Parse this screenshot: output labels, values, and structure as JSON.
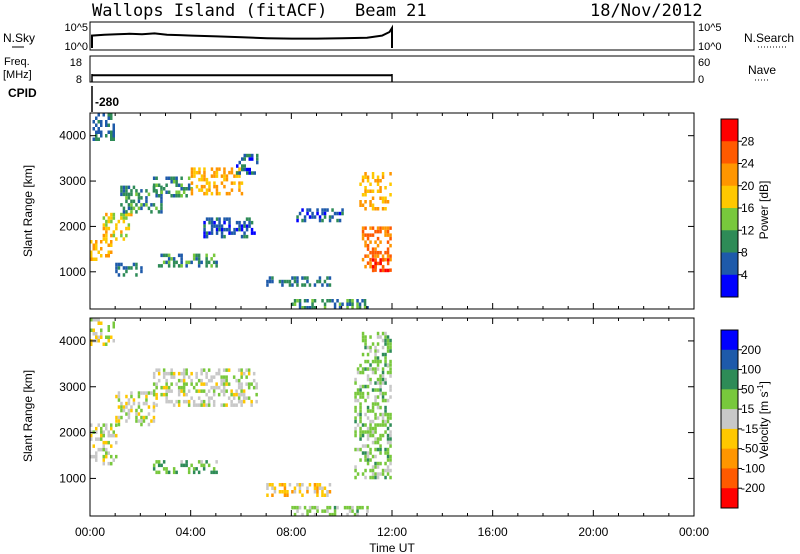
{
  "header": {
    "site": "Wallops Island (fitACF)",
    "beam": "Beam 21",
    "date": "18/Nov/2012"
  },
  "noise_panel": {
    "left_label": "N.Sky",
    "right_label": "N.Search",
    "left_ticks": [
      "10^5",
      "10^0"
    ],
    "right_ticks": [
      "10^5",
      "10^0"
    ],
    "series": [
      {
        "x": 0.0,
        "y": 2.6
      },
      {
        "x": 0.5,
        "y": 2.8
      },
      {
        "x": 1.0,
        "y": 2.9
      },
      {
        "x": 1.5,
        "y": 3.0
      },
      {
        "x": 2.0,
        "y": 2.9
      },
      {
        "x": 2.5,
        "y": 3.1
      },
      {
        "x": 3.0,
        "y": 2.8
      },
      {
        "x": 3.5,
        "y": 2.7
      },
      {
        "x": 4.0,
        "y": 2.6
      },
      {
        "x": 5.0,
        "y": 2.4
      },
      {
        "x": 6.0,
        "y": 2.2
      },
      {
        "x": 7.0,
        "y": 2.0
      },
      {
        "x": 8.0,
        "y": 1.9
      },
      {
        "x": 9.0,
        "y": 1.9
      },
      {
        "x": 10.0,
        "y": 2.0
      },
      {
        "x": 11.0,
        "y": 2.1
      },
      {
        "x": 11.6,
        "y": 2.6
      },
      {
        "x": 11.9,
        "y": 3.4
      }
    ]
  },
  "freq_panel": {
    "left_label_1": "Freq.",
    "left_label_2": "[MHz]",
    "right_label": "Nave",
    "left_ticks": [
      "18",
      "8"
    ],
    "right_ticks": [
      "60",
      "0"
    ],
    "freq_mhz": 10.2,
    "nave": 15
  },
  "cpid": {
    "label": "CPID",
    "value": "-280"
  },
  "chart_data": [
    {
      "type": "heatmap",
      "name": "power",
      "xlabel": "",
      "ylabel": "Slant Range [km]",
      "xlim": [
        0,
        24
      ],
      "ylim": [
        180,
        4500
      ],
      "yticks": [
        "1000",
        "2000",
        "3000",
        "4000"
      ],
      "colorbar": {
        "label": "Power [dB]",
        "ticks": [
          "28",
          "24",
          "20",
          "16",
          "12",
          "8",
          "4"
        ],
        "colors": [
          "#ff0000",
          "#ff5a00",
          "#ff9600",
          "#ffc800",
          "#78c83c",
          "#2e8b57",
          "#1e5aaa",
          "#0000ff"
        ]
      },
      "echo_regions": [
        {
          "x0": 0.1,
          "x1": 0.9,
          "r0": 3900,
          "r1": 4500,
          "value": 8
        },
        {
          "x0": 0.0,
          "x1": 0.8,
          "r0": 1300,
          "r1": 1700,
          "value": 20
        },
        {
          "x0": 0.5,
          "x1": 1.6,
          "r0": 1700,
          "r1": 2300,
          "value": 18
        },
        {
          "x0": 1.2,
          "x1": 2.8,
          "r0": 2300,
          "r1": 2900,
          "value": 10
        },
        {
          "x0": 2.5,
          "x1": 4.0,
          "r0": 2700,
          "r1": 3100,
          "value": 10
        },
        {
          "x0": 4.0,
          "x1": 6.0,
          "r0": 2700,
          "r1": 3300,
          "value": 20
        },
        {
          "x0": 5.8,
          "x1": 6.6,
          "r0": 3200,
          "r1": 3600,
          "value": 6
        },
        {
          "x0": 1.0,
          "x1": 2.0,
          "r0": 950,
          "r1": 1200,
          "value": 8
        },
        {
          "x0": 2.5,
          "x1": 5.0,
          "r0": 1150,
          "r1": 1400,
          "value": 10
        },
        {
          "x0": 4.5,
          "x1": 6.5,
          "r0": 1800,
          "r1": 2200,
          "value": 6
        },
        {
          "x0": 8.0,
          "x1": 10.0,
          "r0": 2100,
          "r1": 2400,
          "value": 6
        },
        {
          "x0": 7.0,
          "x1": 9.5,
          "r0": 700,
          "r1": 900,
          "value": 8
        },
        {
          "x0": 8.0,
          "x1": 11.0,
          "r0": 180,
          "r1": 400,
          "value": 10
        },
        {
          "x0": 10.7,
          "x1": 11.9,
          "r0": 2400,
          "r1": 3200,
          "value": 20
        },
        {
          "x0": 10.8,
          "x1": 11.9,
          "r0": 1000,
          "r1": 2000,
          "value": 24
        },
        {
          "x0": 11.2,
          "x1": 11.9,
          "r0": 1000,
          "r1": 1300,
          "value": 28
        }
      ]
    },
    {
      "type": "heatmap",
      "name": "velocity",
      "xlabel": "Time UT",
      "ylabel": "Slant Range [km]",
      "xlim": [
        0,
        24
      ],
      "ylim": [
        180,
        4500
      ],
      "xticks": [
        "00:00",
        "04:00",
        "08:00",
        "12:00",
        "16:00",
        "20:00",
        "00:00"
      ],
      "yticks": [
        "1000",
        "2000",
        "3000",
        "4000"
      ],
      "colorbar": {
        "label_main": "Velocity [m s",
        "label_sup": "-1",
        "label_end": "]",
        "ticks": [
          "200",
          "100",
          "50",
          "15",
          "-15",
          "-50",
          "-100",
          "-200"
        ],
        "colors": [
          "#0000ff",
          "#1e5aaa",
          "#2e8b57",
          "#78c83c",
          "#c8c8c8",
          "#ffc800",
          "#ff9600",
          "#ff5a00",
          "#ff0000"
        ]
      },
      "echo_regions": [
        {
          "x0": 0.0,
          "x1": 0.9,
          "r0": 3900,
          "r1": 4500,
          "value": 0
        },
        {
          "x0": 0.0,
          "x1": 1.0,
          "r0": 1300,
          "r1": 2200,
          "value": 0
        },
        {
          "x0": 1.0,
          "x1": 2.5,
          "r0": 2200,
          "r1": 2900,
          "value": 0
        },
        {
          "x0": 2.5,
          "x1": 6.6,
          "r0": 2600,
          "r1": 3400,
          "value": 5
        },
        {
          "x0": 2.5,
          "x1": 5.0,
          "r0": 1150,
          "r1": 1400,
          "value": 40
        },
        {
          "x0": 7.0,
          "x1": 9.5,
          "r0": 650,
          "r1": 900,
          "value": -30
        },
        {
          "x0": 8.0,
          "x1": 11.0,
          "r0": 180,
          "r1": 400,
          "value": 25
        },
        {
          "x0": 10.5,
          "x1": 11.9,
          "r0": 1000,
          "r1": 3500,
          "value": 30
        },
        {
          "x0": 10.8,
          "x1": 11.9,
          "r0": 3500,
          "r1": 4200,
          "value": 30
        }
      ]
    }
  ]
}
